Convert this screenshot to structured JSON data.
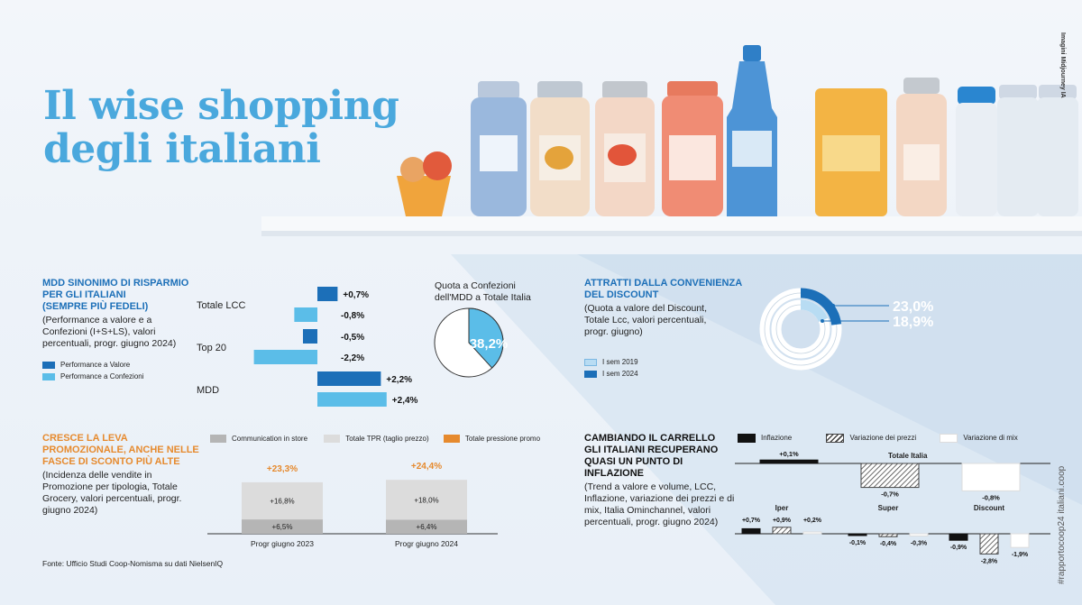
{
  "headline": {
    "line1": "Il wise shopping",
    "line2": "degli italiani"
  },
  "credit": "Imagini Midjourney IA",
  "hashtag": "#rapportocoop24 italiani.coop",
  "source": "Fonte: Ufficio Studi Coop-Nomisma su dati NielsenIQ",
  "colors": {
    "dark_blue": "#1c6fb8",
    "light_blue": "#5bbde8",
    "orange": "#e68a2e",
    "gray_dark": "#b5b5b5",
    "gray_light": "#dcdcdc",
    "title_blue": "#4aa8dd"
  },
  "mdd": {
    "title": "MDD SINONIMO DI RISPARMIO PER GLI ITALIANI (SEMPRE PIÙ FEDELI)",
    "title_lines": [
      "MDD SINONIMO DI RISPARMIO",
      "PER GLI ITALIANI",
      "(SEMPRE PIÙ FEDELI)"
    ],
    "subtitle_lines": [
      "(Performance a valore e a",
      "Confezioni (I+S+LS), valori",
      "percentuali,  progr. giugno 2024)"
    ],
    "legend": [
      "Performance a Valore",
      "Performance a Confezioni"
    ]
  },
  "quota": {
    "title_lines": [
      "Quota a Confezioni",
      "dell'MDD a Totale Italia"
    ],
    "label": "38,2%"
  },
  "discount": {
    "title_lines": [
      "ATTRATTI DALLA CONVENIENZA",
      "DEL DISCOUNT"
    ],
    "subtitle_lines": [
      "(Quota a valore del Discount,",
      "Totale Lcc, valori percentuali,",
      "progr. giugno)"
    ],
    "legend": [
      "I sem 2019",
      "I sem 2024"
    ],
    "label_2024": "23,0%",
    "label_2019": "18,9%"
  },
  "promo": {
    "title_lines": [
      "CRESCE LA LEVA",
      "PROMOZIONALE, ANCHE NELLE",
      "FASCE DI SCONTO PIÙ ALTE"
    ],
    "subtitle_lines": [
      "(Incidenza delle vendite in",
      "Promozione per tipologia, Totale",
      "Grocery, valori percentuali, progr.",
      "giugno 2024)"
    ],
    "legend": [
      "Communication in store",
      "Totale TPR (taglio prezzo)",
      "Totale pressione promo"
    ]
  },
  "carrello": {
    "title_lines": [
      "CAMBIANDO IL CARRELLO",
      "GLI ITALIANI RECUPERANO",
      "QUASI UN PUNTO DI INFLAZIONE"
    ],
    "subtitle_lines": [
      "(Trend a valore e volume, LCC,",
      "Inflazione, variazione dei prezzi e di",
      "mix, Italia Ominchannel, valori",
      "percentuali, progr. giugno 2024)"
    ],
    "legend": [
      "Inflazione",
      "Variazione dei prezzi",
      "Variazione di mix"
    ]
  },
  "chart_data": [
    {
      "type": "bar",
      "orientation": "horizontal",
      "categories": [
        "Totale LCC",
        "Top 20",
        "MDD"
      ],
      "series": [
        {
          "name": "Performance a Valore",
          "values": [
            0.7,
            -0.5,
            2.2
          ],
          "labels": [
            "+0,7%",
            "-0,5%",
            "+2,2%"
          ]
        },
        {
          "name": "Performance a Confezioni",
          "values": [
            -0.8,
            -2.2,
            2.4
          ],
          "labels": [
            "-0,8%",
            "-2,2%",
            "+2,4%"
          ]
        }
      ]
    },
    {
      "type": "pie",
      "title": "Quota a Confezioni dell'MDD a Totale Italia",
      "values": [
        38.2,
        61.8
      ],
      "labels": [
        "38,2%",
        ""
      ]
    },
    {
      "type": "pie",
      "variant": "concentric-rings",
      "series": [
        {
          "name": "I sem 2024",
          "value": 23.0,
          "label": "23,0%"
        },
        {
          "name": "I sem 2019",
          "value": 18.9,
          "label": "18,9%"
        }
      ]
    },
    {
      "type": "bar",
      "variant": "stacked",
      "categories": [
        "Progr giugno 2023",
        "Progr giugno 2024"
      ],
      "series": [
        {
          "name": "Communication in store",
          "values": [
            6.5,
            6.4
          ],
          "labels": [
            "+6,5%",
            "+6,4%"
          ]
        },
        {
          "name": "Totale TPR (taglio prezzo)",
          "values": [
            16.8,
            18.0
          ],
          "labels": [
            "+16,8%",
            "+18,0%"
          ]
        }
      ],
      "totals": {
        "name": "Totale pressione promo",
        "values": [
          23.3,
          24.4
        ],
        "labels": [
          "+23,3%",
          "+24,4%"
        ]
      }
    },
    {
      "type": "bar",
      "panels": [
        {
          "name": "Totale Italia",
          "values": [
            0.1,
            -0.7,
            -0.8
          ],
          "labels": [
            "+0,1%",
            "-0,7%",
            "-0,8%"
          ]
        },
        {
          "name": "Iper",
          "values": [
            0.7,
            0.9,
            0.2
          ],
          "labels": [
            "+0,7%",
            "+0,9%",
            "+0,2%"
          ]
        },
        {
          "name": "Super",
          "values": [
            -0.1,
            -0.4,
            -0.3
          ],
          "labels": [
            "-0,1%",
            "-0,4%",
            "-0,3%"
          ]
        },
        {
          "name": "Discount",
          "values": [
            -0.9,
            -2.8,
            -1.9
          ],
          "labels": [
            "-0,9%",
            "-2,8%",
            "-1,9%"
          ]
        }
      ],
      "series_names": [
        "Inflazione",
        "Variazione dei prezzi",
        "Variazione di mix"
      ]
    }
  ]
}
